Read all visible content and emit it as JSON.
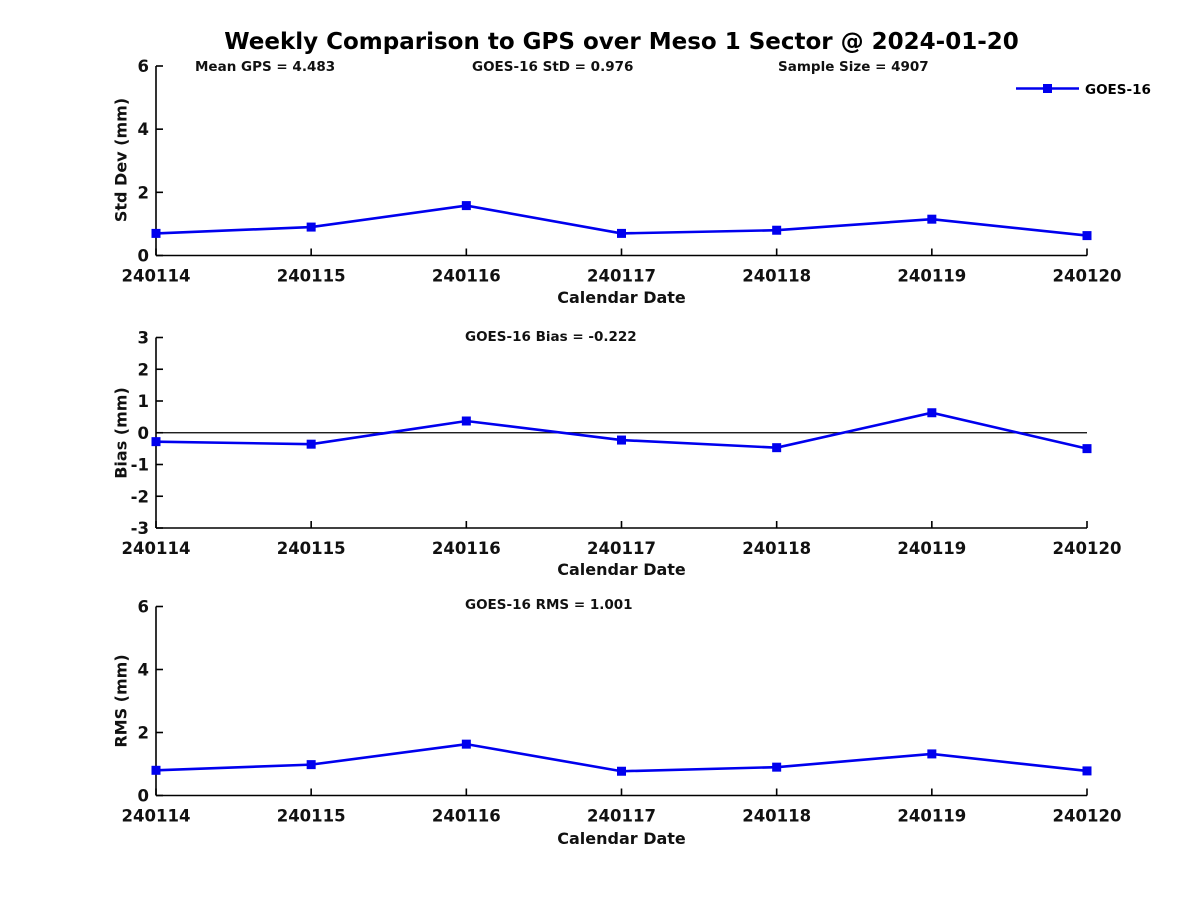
{
  "title": "Weekly Comparison to GPS over Meso 1 Sector @ 2024-01-20",
  "legend": {
    "label": "GOES-16"
  },
  "colors": {
    "line": "#0000EE",
    "axis": "#000000",
    "text": "#111111"
  },
  "chart_data": [
    {
      "type": "line",
      "id": "std-dev",
      "ylabel": "Std Dev (mm)",
      "xlabel": "Calendar Date",
      "annotations": [
        {
          "text": "Mean GPS = 4.483"
        },
        {
          "text": "GOES-16 StD = 0.976"
        },
        {
          "text": "Sample Size = 4907"
        }
      ],
      "categories": [
        "240114",
        "240115",
        "240116",
        "240117",
        "240118",
        "240119",
        "240120"
      ],
      "series": [
        {
          "name": "GOES-16",
          "values": [
            0.7,
            0.9,
            1.58,
            0.7,
            0.8,
            1.15,
            0.63
          ]
        }
      ],
      "ylim": [
        0,
        6
      ],
      "yticks": [
        0,
        2,
        4,
        6
      ],
      "zero_line": false,
      "legend_position": "top-right",
      "grid": false
    },
    {
      "type": "line",
      "id": "bias",
      "ylabel": "Bias (mm)",
      "xlabel": "Calendar Date",
      "annotations": [
        {
          "text": "GOES-16 Bias  = -0.222"
        }
      ],
      "categories": [
        "240114",
        "240115",
        "240116",
        "240117",
        "240118",
        "240119",
        "240120"
      ],
      "series": [
        {
          "name": "GOES-16",
          "values": [
            -0.28,
            -0.36,
            0.37,
            -0.23,
            -0.47,
            0.63,
            -0.5
          ]
        }
      ],
      "ylim": [
        -3,
        3
      ],
      "yticks": [
        -3,
        -2,
        -1,
        0,
        1,
        2,
        3
      ],
      "zero_line": true,
      "grid": false
    },
    {
      "type": "line",
      "id": "rms",
      "ylabel": "RMS (mm)",
      "xlabel": "Calendar Date",
      "annotations": [
        {
          "text": "GOES-16 RMS = 1.001"
        }
      ],
      "categories": [
        "240114",
        "240115",
        "240116",
        "240117",
        "240118",
        "240119",
        "240120"
      ],
      "series": [
        {
          "name": "GOES-16",
          "values": [
            0.8,
            0.98,
            1.63,
            0.77,
            0.9,
            1.32,
            0.78
          ]
        }
      ],
      "ylim": [
        0,
        6
      ],
      "yticks": [
        0,
        2,
        4,
        6
      ],
      "zero_line": false,
      "grid": false
    }
  ]
}
